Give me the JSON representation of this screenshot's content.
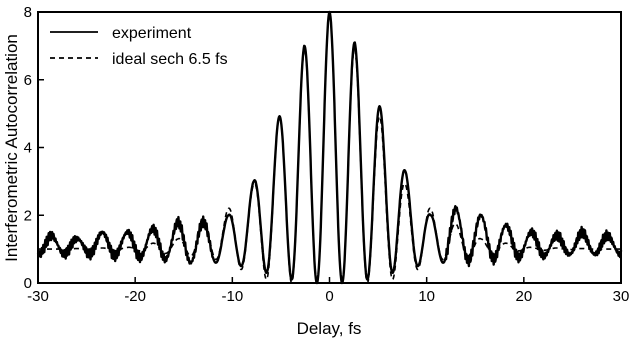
{
  "chart_data": {
    "type": "line",
    "title": "",
    "xlabel": "Delay, fs",
    "ylabel": "Interferometric Autocorrelation",
    "xlim": [
      -30,
      30
    ],
    "ylim": [
      0,
      8
    ],
    "xticks": [
      -30,
      -20,
      -10,
      0,
      10,
      20,
      30
    ],
    "yticks": [
      0,
      2,
      4,
      6,
      8
    ],
    "grid": false,
    "legend_position": "top-left",
    "series": [
      {
        "name": "experiment",
        "style": "solid",
        "color": "#000000",
        "fringe_period_fs": 2.6,
        "peak_envelope": [
          {
            "x": -28.6,
            "y": 1.4
          },
          {
            "x": -26.0,
            "y": 1.3
          },
          {
            "x": -23.4,
            "y": 1.5
          },
          {
            "x": -20.8,
            "y": 1.5
          },
          {
            "x": -18.2,
            "y": 1.6
          },
          {
            "x": -15.6,
            "y": 1.8
          },
          {
            "x": -13.0,
            "y": 1.8
          },
          {
            "x": -10.4,
            "y": 2.0
          },
          {
            "x": -7.8,
            "y": 3.0
          },
          {
            "x": -5.2,
            "y": 4.9
          },
          {
            "x": -2.6,
            "y": 7.0
          },
          {
            "x": 0.0,
            "y": 8.0
          },
          {
            "x": 2.6,
            "y": 7.1
          },
          {
            "x": 5.2,
            "y": 5.2
          },
          {
            "x": 7.8,
            "y": 3.3
          },
          {
            "x": 10.4,
            "y": 2.0
          },
          {
            "x": 13.0,
            "y": 2.2
          },
          {
            "x": 15.6,
            "y": 2.0
          },
          {
            "x": 18.2,
            "y": 1.7
          },
          {
            "x": 20.8,
            "y": 1.5
          },
          {
            "x": 23.4,
            "y": 1.4
          },
          {
            "x": 26.0,
            "y": 1.5
          },
          {
            "x": 28.6,
            "y": 1.4
          }
        ],
        "valley_envelope": [
          {
            "x": -27.3,
            "y": 0.85
          },
          {
            "x": -24.7,
            "y": 0.85
          },
          {
            "x": -22.1,
            "y": 0.8
          },
          {
            "x": -19.5,
            "y": 0.75
          },
          {
            "x": -16.9,
            "y": 0.7
          },
          {
            "x": -14.3,
            "y": 0.6
          },
          {
            "x": -11.7,
            "y": 0.6
          },
          {
            "x": -9.1,
            "y": 0.5
          },
          {
            "x": -6.5,
            "y": 0.3
          },
          {
            "x": -3.9,
            "y": 0.1
          },
          {
            "x": -1.3,
            "y": 0.0
          },
          {
            "x": 1.3,
            "y": 0.0
          },
          {
            "x": 3.9,
            "y": 0.1
          },
          {
            "x": 6.5,
            "y": 0.3
          },
          {
            "x": 9.1,
            "y": 0.5
          },
          {
            "x": 11.7,
            "y": 0.6
          },
          {
            "x": 14.3,
            "y": 0.65
          },
          {
            "x": 16.9,
            "y": 0.7
          },
          {
            "x": 19.5,
            "y": 0.75
          },
          {
            "x": 22.1,
            "y": 0.8
          },
          {
            "x": 24.7,
            "y": 0.85
          },
          {
            "x": 27.3,
            "y": 0.85
          }
        ]
      },
      {
        "name": "ideal sech 6.5 fs",
        "style": "dashed",
        "color": "#000000",
        "fringe_period_fs": 2.6,
        "peak_envelope": [
          {
            "x": -28.6,
            "y": 1.0
          },
          {
            "x": -20.8,
            "y": 1.05
          },
          {
            "x": -15.6,
            "y": 1.3
          },
          {
            "x": -10.4,
            "y": 2.2
          },
          {
            "x": -7.8,
            "y": 2.9
          },
          {
            "x": -5.2,
            "y": 4.9
          },
          {
            "x": -2.6,
            "y": 6.9
          },
          {
            "x": 0.0,
            "y": 8.0
          },
          {
            "x": 2.6,
            "y": 6.9
          },
          {
            "x": 5.2,
            "y": 4.9
          },
          {
            "x": 7.8,
            "y": 2.9
          },
          {
            "x": 10.4,
            "y": 2.2
          },
          {
            "x": 15.6,
            "y": 1.3
          },
          {
            "x": 20.8,
            "y": 1.05
          },
          {
            "x": 28.6,
            "y": 1.0
          }
        ],
        "valley_envelope": [
          {
            "x": -27.3,
            "y": 1.0
          },
          {
            "x": -19.5,
            "y": 0.95
          },
          {
            "x": -14.3,
            "y": 0.8
          },
          {
            "x": -11.7,
            "y": 0.7
          },
          {
            "x": -9.1,
            "y": 0.4
          },
          {
            "x": -6.5,
            "y": 0.1
          },
          {
            "x": -3.9,
            "y": 0.0
          },
          {
            "x": -1.3,
            "y": 0.0
          },
          {
            "x": 1.3,
            "y": 0.0
          },
          {
            "x": 3.9,
            "y": 0.0
          },
          {
            "x": 6.5,
            "y": 0.1
          },
          {
            "x": 9.1,
            "y": 0.4
          },
          {
            "x": 11.7,
            "y": 0.7
          },
          {
            "x": 14.3,
            "y": 0.8
          },
          {
            "x": 19.5,
            "y": 0.95
          },
          {
            "x": 27.3,
            "y": 1.0
          }
        ]
      }
    ]
  }
}
